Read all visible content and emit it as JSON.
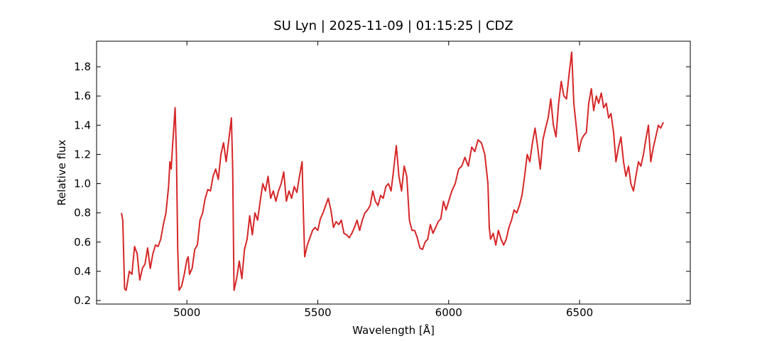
{
  "chart_data": {
    "type": "line",
    "title": "SU Lyn | 2025-11-09 | 01:15:25 | CDZ",
    "x_label": "Wavelength [Å]",
    "y_label": "Relative flux",
    "xlim": [
      4655,
      6923
    ],
    "ylim": [
      0.176,
      1.975
    ],
    "xticks": [
      5000,
      5500,
      6000,
      6500
    ],
    "yticks": [
      0.2,
      0.4,
      0.6,
      0.8,
      {
        "value": 1,
        "label": "1.0"
      },
      1.2,
      1.4,
      1.6,
      1.8
    ],
    "grid": false,
    "series": [
      {
        "color": "#d62728",
        "x": [
          4750,
          4755,
          4762,
          4768,
          4780,
          4790,
          4800,
          4810,
          4820,
          4830,
          4840,
          4850,
          4860,
          4870,
          4880,
          4890,
          4900,
          4910,
          4920,
          4930,
          4935,
          4940,
          4945,
          4955,
          4960,
          4965,
          4970,
          4980,
          4990,
          5000,
          5005,
          5010,
          5020,
          5030,
          5040,
          5050,
          5060,
          5070,
          5080,
          5090,
          5100,
          5110,
          5120,
          5130,
          5140,
          5150,
          5160,
          5170,
          5175,
          5180,
          5190,
          5200,
          5210,
          5220,
          5230,
          5240,
          5250,
          5260,
          5270,
          5280,
          5290,
          5300,
          5310,
          5320,
          5330,
          5340,
          5350,
          5360,
          5370,
          5380,
          5390,
          5400,
          5410,
          5420,
          5430,
          5440,
          5445,
          5450,
          5460,
          5470,
          5480,
          5490,
          5500,
          5510,
          5520,
          5530,
          5540,
          5550,
          5560,
          5570,
          5580,
          5590,
          5600,
          5610,
          5620,
          5630,
          5640,
          5650,
          5660,
          5670,
          5680,
          5690,
          5700,
          5710,
          5720,
          5730,
          5740,
          5750,
          5760,
          5770,
          5780,
          5790,
          5800,
          5810,
          5820,
          5830,
          5840,
          5850,
          5860,
          5870,
          5880,
          5890,
          5900,
          5910,
          5920,
          5930,
          5940,
          5950,
          5960,
          5970,
          5980,
          5990,
          6000,
          6012,
          6025,
          6038,
          6050,
          6062,
          6075,
          6088,
          6100,
          6112,
          6125,
          6138,
          6150,
          6155,
          6160,
          6170,
          6180,
          6190,
          6200,
          6210,
          6220,
          6230,
          6240,
          6250,
          6260,
          6270,
          6280,
          6290,
          6300,
          6310,
          6320,
          6330,
          6340,
          6350,
          6360,
          6370,
          6380,
          6390,
          6400,
          6410,
          6420,
          6430,
          6440,
          6450,
          6460,
          6470,
          6478,
          6488,
          6497,
          6507,
          6516,
          6526,
          6535,
          6545,
          6554,
          6564,
          6573,
          6583,
          6592,
          6602,
          6611,
          6620,
          6630,
          6639,
          6649,
          6658,
          6668,
          6677,
          6687,
          6696,
          6706,
          6715,
          6725,
          6734,
          6744,
          6753,
          6763,
          6772,
          6782,
          6791,
          6801,
          6810,
          6820
        ],
        "values": [
          0.8,
          0.75,
          0.28,
          0.27,
          0.4,
          0.38,
          0.57,
          0.52,
          0.34,
          0.42,
          0.45,
          0.56,
          0.42,
          0.52,
          0.58,
          0.57,
          0.62,
          0.72,
          0.8,
          0.98,
          1.15,
          1.1,
          1.25,
          1.52,
          1.2,
          0.55,
          0.27,
          0.3,
          0.38,
          0.48,
          0.5,
          0.38,
          0.42,
          0.55,
          0.58,
          0.75,
          0.8,
          0.9,
          0.96,
          0.95,
          1.05,
          1.1,
          1.03,
          1.2,
          1.28,
          1.15,
          1.3,
          1.45,
          1.1,
          0.27,
          0.35,
          0.47,
          0.35,
          0.55,
          0.62,
          0.78,
          0.65,
          0.8,
          0.75,
          0.88,
          1.0,
          0.95,
          1.05,
          0.9,
          0.95,
          0.88,
          0.95,
          1.0,
          1.08,
          0.88,
          0.95,
          0.9,
          0.98,
          0.94,
          1.05,
          1.15,
          0.8,
          0.5,
          0.58,
          0.63,
          0.68,
          0.7,
          0.68,
          0.76,
          0.8,
          0.85,
          0.9,
          0.82,
          0.7,
          0.74,
          0.72,
          0.75,
          0.66,
          0.65,
          0.63,
          0.66,
          0.7,
          0.75,
          0.68,
          0.75,
          0.8,
          0.82,
          0.85,
          0.95,
          0.88,
          0.85,
          0.92,
          0.9,
          0.98,
          1.0,
          0.95,
          1.1,
          1.26,
          1.05,
          0.95,
          1.12,
          1.05,
          0.75,
          0.68,
          0.68,
          0.63,
          0.56,
          0.55,
          0.6,
          0.62,
          0.72,
          0.66,
          0.7,
          0.74,
          0.76,
          0.88,
          0.82,
          0.88,
          0.95,
          1.0,
          1.1,
          1.12,
          1.18,
          1.12,
          1.25,
          1.22,
          1.3,
          1.28,
          1.2,
          1.0,
          0.7,
          0.62,
          0.66,
          0.58,
          0.68,
          0.62,
          0.58,
          0.62,
          0.7,
          0.75,
          0.82,
          0.8,
          0.85,
          0.92,
          1.05,
          1.2,
          1.15,
          1.28,
          1.38,
          1.25,
          1.1,
          1.3,
          1.38,
          1.45,
          1.58,
          1.4,
          1.32,
          1.55,
          1.7,
          1.6,
          1.58,
          1.75,
          1.9,
          1.55,
          1.38,
          1.22,
          1.3,
          1.33,
          1.35,
          1.55,
          1.65,
          1.5,
          1.6,
          1.55,
          1.62,
          1.52,
          1.55,
          1.45,
          1.48,
          1.35,
          1.15,
          1.25,
          1.32,
          1.15,
          1.05,
          1.12,
          1.0,
          0.95,
          1.05,
          1.15,
          1.12,
          1.2,
          1.3,
          1.4,
          1.15,
          1.25,
          1.32,
          1.4,
          1.38,
          1.42
        ]
      }
    ]
  }
}
